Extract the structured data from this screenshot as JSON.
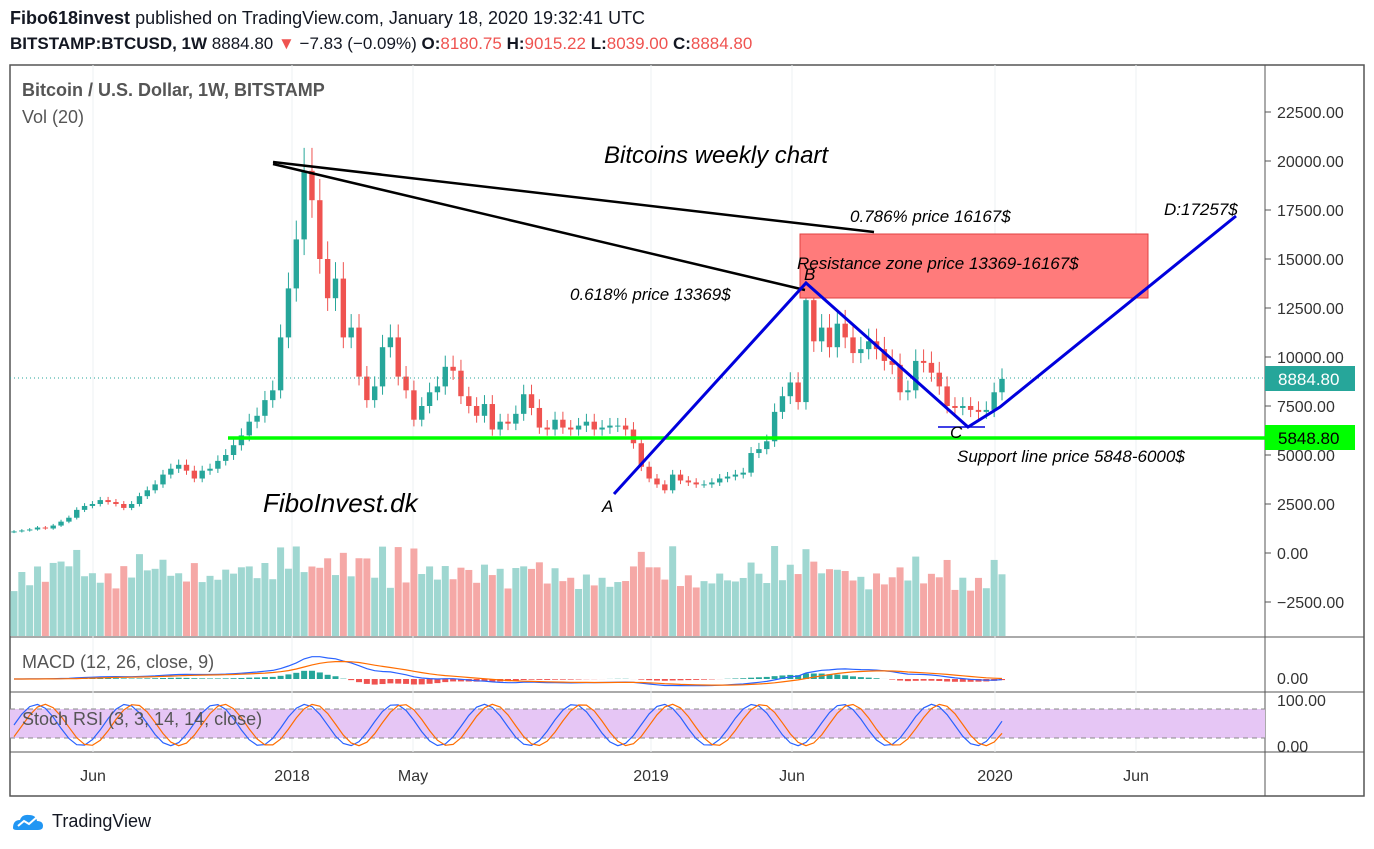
{
  "header": {
    "author": "Fibo618invest",
    "published": "published on TradingView.com, January 18, 2020 19:32:41 UTC",
    "symbol": "BITSTAMP:BTCUSD, 1W",
    "last": "8884.80",
    "change_arrow": "▼",
    "change": "−7.83 (−0.09%)",
    "o_label": "O:",
    "o_val": "8180.75",
    "h_label": "H:",
    "h_val": "9015.22",
    "l_label": "L:",
    "l_val": "8039.00",
    "c_label": "C:",
    "c_val": "8884.80"
  },
  "legend": {
    "main": "Bitcoin / U.S. Dollar, 1W, BITSTAMP",
    "vol": "Vol (20)",
    "macd": "MACD (12, 26, close, 9)",
    "stoch": "Stoch RSI (3, 3, 14, 14, close)"
  },
  "annotations": {
    "title": "Bitcoins weekly chart",
    "fib786": "0.786% price 16167$",
    "fib618": "0.618% price  13369$",
    "resistance": "Resistance zone price 13369-16167$",
    "support": "Support line price 5848-6000$",
    "d_label": "D:17257$",
    "a": "A",
    "b": "B",
    "c": "C",
    "watermark": "FiboInvest.dk"
  },
  "footer": {
    "brand": "TradingView"
  },
  "colors": {
    "up": "#26a69a",
    "down": "#ef5350",
    "support_line": "#00ff00",
    "pattern": "#0000dd",
    "resistance_fill": "#ff7b7b",
    "price_tag": "#26a69a",
    "macd_line": "#2962ff",
    "signal_line": "#ff6d00",
    "stoch_bg": "#e1bee7"
  },
  "chart_data": {
    "type": "candlestick",
    "price_axis_ticks": [
      "22500.00",
      "20000.00",
      "17500.00",
      "15000.00",
      "12500.00",
      "10000.00",
      "7500.00",
      "5000.00",
      "2500.00",
      "0.00",
      "−2500.00"
    ],
    "macd_axis_ticks": [
      "0.00"
    ],
    "stoch_axis_ticks": [
      "100.00",
      "0.00"
    ],
    "time_axis_labels": [
      "Jun",
      "2018",
      "May",
      "2019",
      "Jun",
      "2020",
      "Jun"
    ],
    "last_price_tag": "8884.80",
    "support_price_tag": "5848.80",
    "ylim": [
      -4200,
      24500
    ],
    "support_level": 5848.8,
    "resistance_zone": [
      13369,
      16167
    ],
    "points": {
      "A": 3200,
      "B": 13800,
      "C": 6400,
      "D": 17257
    },
    "weekly_closes": [
      1100,
      1150,
      1200,
      1300,
      1250,
      1400,
      1600,
      1800,
      2200,
      2400,
      2500,
      2700,
      2600,
      2500,
      2300,
      2500,
      2900,
      3200,
      3500,
      4000,
      4300,
      4500,
      4200,
      3800,
      4200,
      4300,
      4700,
      5000,
      5500,
      6000,
      6700,
      7000,
      7800,
      8300,
      11000,
      13500,
      16000,
      19500,
      18000,
      15000,
      13000,
      14000,
      11000,
      11500,
      9000,
      7800,
      8500,
      10500,
      11000,
      9000,
      8300,
      6800,
      7500,
      8200,
      8500,
      9500,
      9300,
      8000,
      7500,
      7000,
      7600,
      6300,
      6700,
      6600,
      7100,
      8100,
      7400,
      6400,
      6300,
      6800,
      6400,
      6300,
      6500,
      6700,
      6300,
      6400,
      6500,
      6500,
      6300,
      5600,
      4400,
      3800,
      3500,
      3200,
      4000,
      3700,
      3600,
      3500,
      3500,
      3600,
      3800,
      3900,
      4000,
      4100,
      5100,
      5300,
      5700,
      7200,
      8000,
      8700,
      7700,
      12900,
      10800,
      11500,
      10500,
      11700,
      11000,
      10200,
      10400,
      10800,
      10400,
      9800,
      9600,
      8200,
      8300,
      9800,
      9700,
      9200,
      8500,
      7500,
      7400,
      7500,
      7300,
      7200,
      7300,
      8200,
      8885
    ],
    "macd_note": "MACD line and signal oscillate around 0.00",
    "stoch_note": "Stoch RSI K and D oscillate between 0 and 100"
  }
}
